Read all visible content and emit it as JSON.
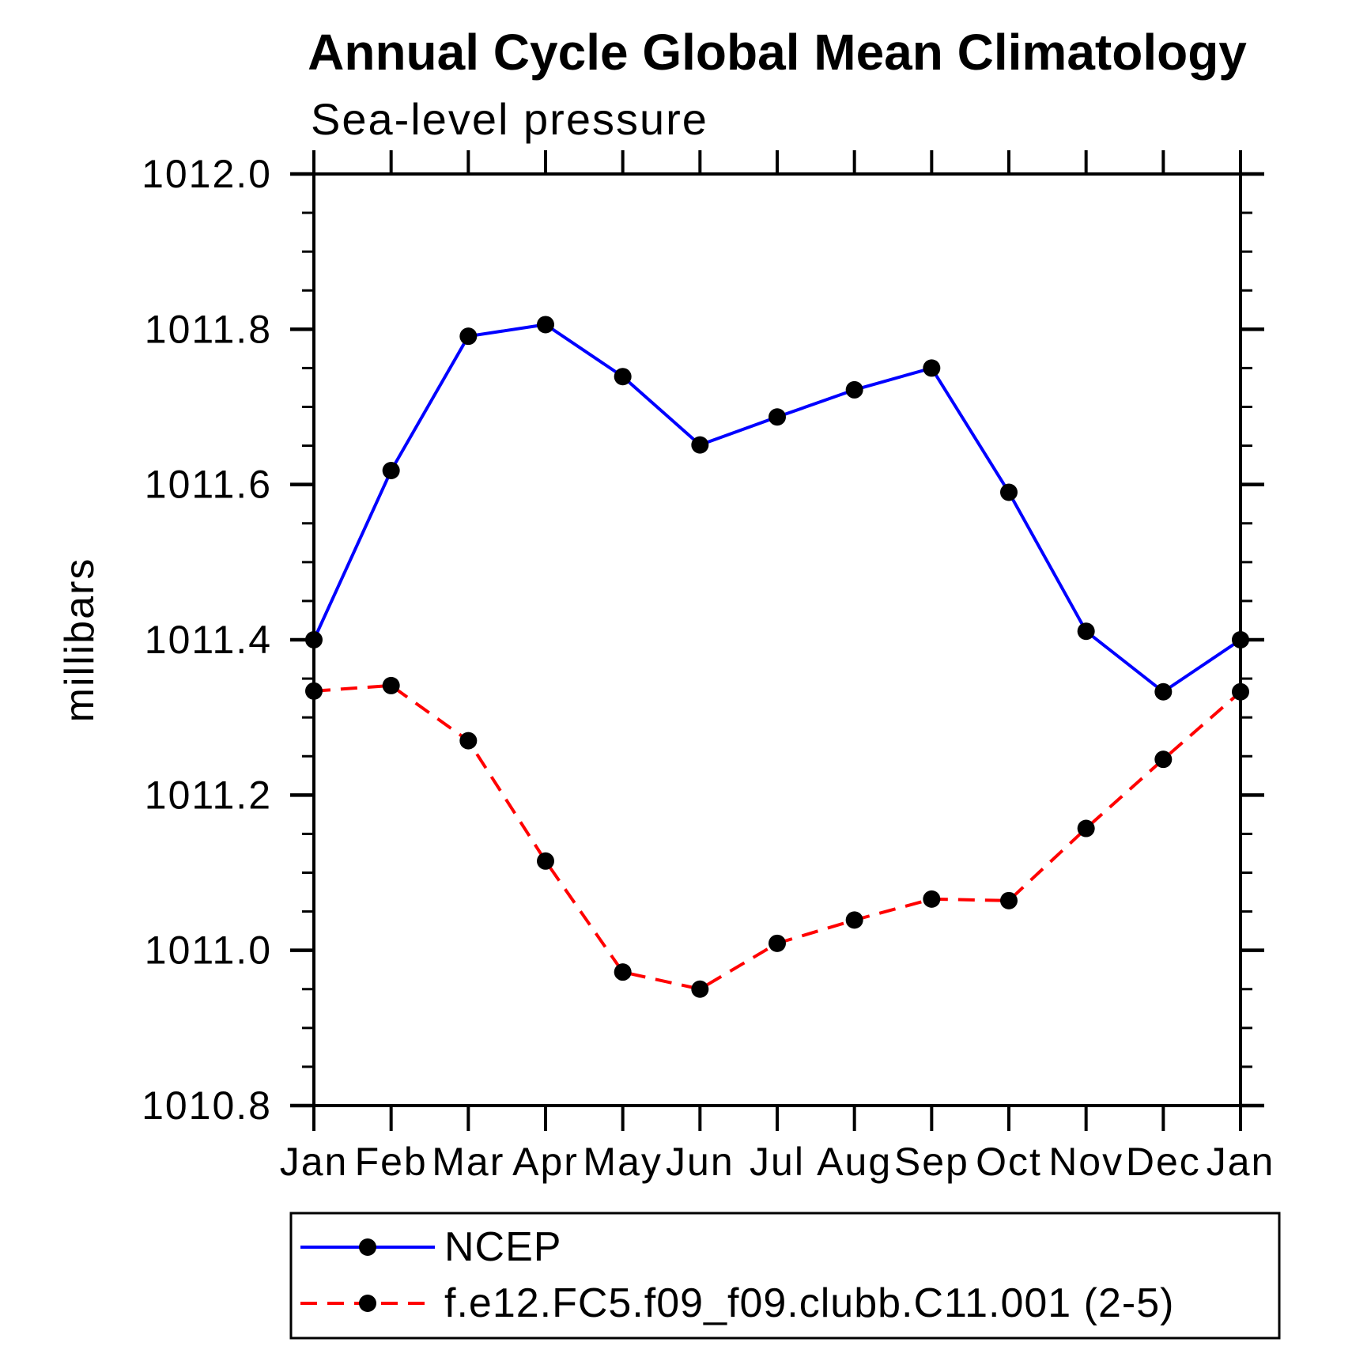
{
  "chart_data": {
    "type": "line",
    "title": "Annual Cycle Global Mean Climatology",
    "subtitle": "Sea-level pressure",
    "ylabel": "millibars",
    "xlabel": "",
    "categories": [
      "Jan",
      "Feb",
      "Mar",
      "Apr",
      "May",
      "Jun",
      "Jul",
      "Aug",
      "Sep",
      "Oct",
      "Nov",
      "Dec",
      "Jan"
    ],
    "ylim": [
      1010.8,
      1012.0
    ],
    "ytick_major": 0.2,
    "ytick_minor": 0.05,
    "ytick_labels": [
      "1012.0",
      "1011.8",
      "1011.6",
      "1011.4",
      "1011.2",
      "1011.0",
      "1010.8"
    ],
    "grid": false,
    "tick_direction": "outward",
    "legend_position": "bottom-box",
    "axis_color": "#000000",
    "marker_shape": "filled-circle",
    "marker_color": "#000000",
    "series": [
      {
        "name": "NCEP",
        "color": "#0000ff",
        "line_style": "solid",
        "values": [
          1011.4,
          1011.618,
          1011.791,
          1011.806,
          1011.739,
          1011.651,
          1011.687,
          1011.722,
          1011.75,
          1011.59,
          1011.411,
          1011.333,
          1011.4
        ]
      },
      {
        "name": "f.e12.FC5.f09_f09.clubb.C11.001 (2-5)",
        "color": "#ff0000",
        "line_style": "dashed",
        "values": [
          1011.334,
          1011.341,
          1011.27,
          1011.115,
          1010.972,
          1010.95,
          1011.009,
          1011.039,
          1011.066,
          1011.064,
          1011.157,
          1011.246,
          1011.333
        ]
      }
    ]
  }
}
